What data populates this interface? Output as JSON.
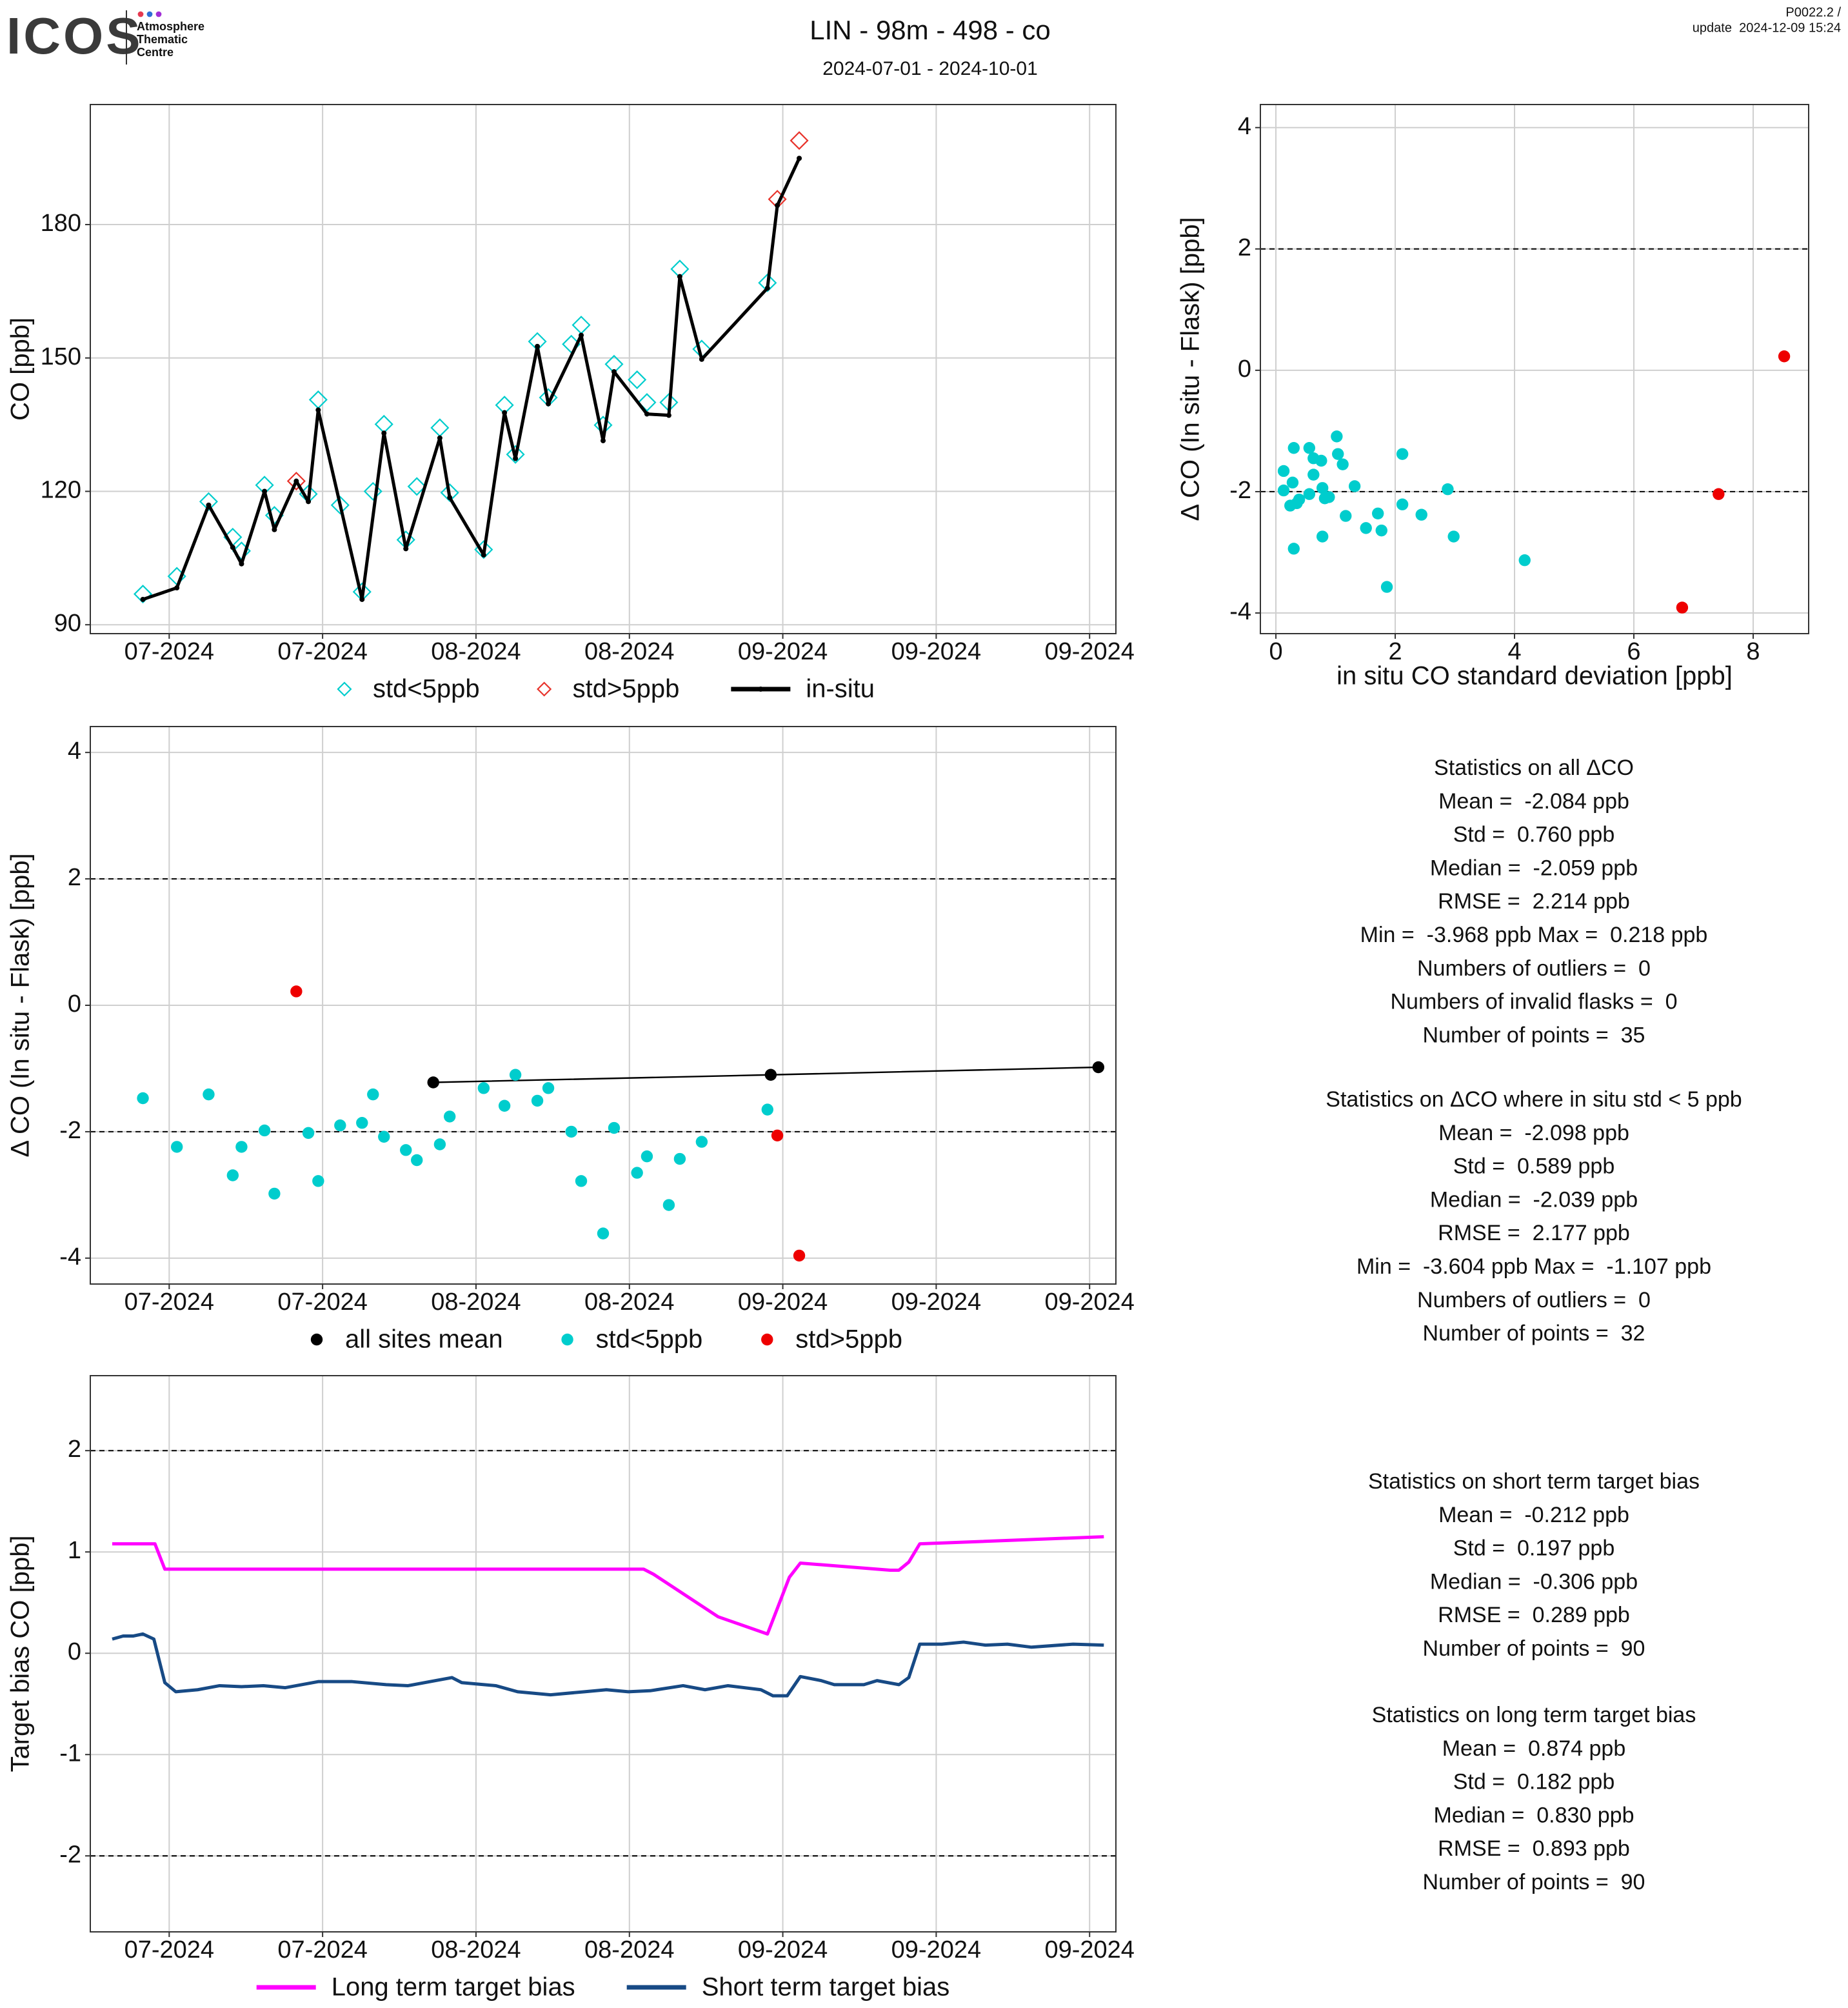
{
  "header": {
    "logo": "ICOS",
    "logo_text": [
      "Atmosphere",
      "Thematic",
      "Centre"
    ],
    "title": "LIN - 98m - 498 - co",
    "subtitle": "2024-07-01 - 2024-10-01",
    "version": "P0022.2 /",
    "update": "update  2024-12-09 15:24"
  },
  "chart_data": [
    {
      "type": "line",
      "ylabel": "CO [ppb]",
      "grid": true,
      "xlim": [
        -1.2,
        92.4
      ],
      "xticks": [
        {
          "value": 6,
          "label": "07-2024"
        },
        {
          "value": 20,
          "label": "07-2024"
        },
        {
          "value": 34,
          "label": "08-2024"
        },
        {
          "value": 48,
          "label": "08-2024"
        },
        {
          "value": 62,
          "label": "09-2024"
        },
        {
          "value": 76,
          "label": "09-2024"
        },
        {
          "value": 90,
          "label": "09-2024"
        }
      ],
      "ylim": [
        88,
        207
      ],
      "yticks": [
        90,
        120,
        150,
        180
      ],
      "series": [
        {
          "name": "std<5ppb",
          "color": "#00cdcd",
          "marker": "diamond",
          "line": false,
          "x": [
            3.6,
            6.7,
            9.6,
            11.8,
            12.6,
            14.7,
            15.6,
            18.7,
            19.6,
            21.6,
            23.6,
            24.6,
            25.6,
            27.6,
            28.6,
            30.7,
            31.6,
            34.7,
            36.6,
            37.6,
            39.6,
            40.6,
            42.7,
            43.6,
            45.6,
            46.6,
            48.7,
            49.6,
            51.6,
            52.6,
            54.6,
            60.6
          ],
          "values": [
            96.9,
            100.9,
            117.7,
            109.7,
            106.6,
            121.4,
            114.6,
            119.4,
            140.6,
            116.9,
            97.4,
            120,
            135.1,
            109.1,
            121.1,
            134.3,
            119.7,
            106.9,
            139.4,
            128.3,
            153.7,
            141.1,
            153.1,
            157.4,
            134.9,
            148.6,
            145.1,
            140,
            140,
            170,
            152,
            166.9
          ]
        },
        {
          "name": "std>5ppb",
          "color": "#e8332b",
          "marker": "diamond",
          "line": false,
          "x": [
            17.6,
            61.5,
            63.5
          ],
          "values": [
            122.3,
            185.7,
            198.9
          ]
        },
        {
          "name": "in-situ",
          "color": "#000000",
          "marker": "point",
          "line": true,
          "x": [
            3.6,
            6.7,
            9.6,
            11.8,
            12.6,
            14.7,
            15.6,
            17.6,
            18.7,
            19.6,
            23.6,
            25.6,
            27.6,
            30.7,
            31.6,
            34.7,
            36.6,
            37.6,
            39.6,
            40.6,
            43.6,
            45.6,
            46.6,
            49.6,
            51.6,
            52.6,
            54.6,
            60.6,
            61.5,
            63.5
          ],
          "values": [
            95.7,
            98.3,
            116.9,
            107.4,
            103.7,
            120,
            111.4,
            122.3,
            117.7,
            138.3,
            95.7,
            133.1,
            107.1,
            132,
            118.6,
            105.7,
            137.7,
            127.4,
            152.6,
            139.7,
            155.1,
            131.4,
            146.9,
            137.4,
            137.1,
            168.3,
            149.7,
            165.7,
            184.3,
            194.9
          ]
        }
      ]
    },
    {
      "type": "scatter",
      "xlabel": "in situ CO standard deviation [ppb]",
      "ylabel": "Δ CO (In situ - Flask) [ppb]",
      "grid": true,
      "xlim": [
        -0.26,
        8.93
      ],
      "xticks": [
        0,
        2,
        4,
        6,
        8
      ],
      "ylim": [
        -4.34,
        4.38
      ],
      "yticks": [
        -4,
        -2,
        0,
        2,
        4
      ],
      "hlines": [
        2,
        -2
      ],
      "series": [
        {
          "color": "#00cdcd",
          "marker": "circle",
          "line": false,
          "x": [
            0.13,
            0.13,
            0.24,
            0.28,
            0.3,
            0.35,
            0.3,
            0.39,
            0.56,
            0.56,
            0.63,
            0.63,
            0.76,
            0.78,
            0.82,
            0.78,
            1.02,
            1.04,
            1.12,
            1.17,
            1.32,
            1.51,
            1.71,
            1.77,
            1.86,
            2.12,
            2.12,
            2.44,
            2.88,
            2.98,
            4.17,
            0.89
          ],
          "values": [
            -1.66,
            -1.98,
            -2.23,
            -1.85,
            -1.28,
            -2.19,
            -2.94,
            -2.13,
            -1.28,
            -2.04,
            -1.45,
            -1.72,
            -1.49,
            -1.94,
            -2.11,
            -2.74,
            -1.09,
            -1.38,
            -1.55,
            -2.4,
            -1.91,
            -2.6,
            -2.36,
            -2.64,
            -3.57,
            -1.38,
            -2.21,
            -2.38,
            -1.96,
            -2.74,
            -3.13,
            -2.09
          ]
        },
        {
          "color": "#ee0000",
          "marker": "circle",
          "line": false,
          "x": [
            8.52,
            7.42,
            6.81
          ],
          "values": [
            0.23,
            -2.04,
            -3.91
          ]
        }
      ]
    },
    {
      "type": "scatter",
      "ylabel": "Δ CO (In situ - Flask) [ppb]",
      "grid": true,
      "xlim": [
        -1.2,
        92.4
      ],
      "xticks": [
        {
          "value": 6,
          "label": "07-2024"
        },
        {
          "value": 20,
          "label": "07-2024"
        },
        {
          "value": 34,
          "label": "08-2024"
        },
        {
          "value": 48,
          "label": "08-2024"
        },
        {
          "value": 62,
          "label": "09-2024"
        },
        {
          "value": 76,
          "label": "09-2024"
        },
        {
          "value": 90,
          "label": "09-2024"
        }
      ],
      "ylim": [
        -4.41,
        4.41
      ],
      "yticks": [
        -4,
        -2,
        0,
        2,
        4
      ],
      "hlines": [
        2,
        -2
      ],
      "series": [
        {
          "name": "all sites mean",
          "color": "#000000",
          "marker": "circle",
          "line": true,
          "x": [
            30.1,
            60.9,
            90.8
          ],
          "values": [
            -1.22,
            -1.1,
            -0.98
          ]
        },
        {
          "name": "std<5ppb",
          "color": "#00cdcd",
          "marker": "circle",
          "line": false,
          "x": [
            3.6,
            6.7,
            9.6,
            11.8,
            12.6,
            14.7,
            15.6,
            18.7,
            19.6,
            21.6,
            23.6,
            24.6,
            25.6,
            27.6,
            28.6,
            30.7,
            31.6,
            34.7,
            36.6,
            37.6,
            39.6,
            40.6,
            42.7,
            43.6,
            45.6,
            46.6,
            48.7,
            49.6,
            51.6,
            52.6,
            54.6,
            60.6
          ],
          "values": [
            -1.47,
            -2.24,
            -1.41,
            -2.69,
            -2.24,
            -1.98,
            -2.98,
            -2.02,
            -2.78,
            -1.9,
            -1.86,
            -1.41,
            -2.08,
            -2.29,
            -2.45,
            -2.2,
            -1.76,
            -1.31,
            -1.59,
            -1.1,
            -1.51,
            -1.31,
            -2.0,
            -2.78,
            -3.61,
            -1.94,
            -2.65,
            -2.39,
            -3.16,
            -2.43,
            -2.16,
            -1.65
          ]
        },
        {
          "name": "std>5ppb",
          "color": "#ee0000",
          "marker": "circle",
          "line": false,
          "x": [
            17.6,
            61.5,
            63.5
          ],
          "values": [
            0.22,
            -2.06,
            -3.96
          ]
        }
      ]
    },
    {
      "type": "line",
      "ylabel": "Target bias CO [ppb]",
      "grid": true,
      "xlim": [
        -1.2,
        92.4
      ],
      "xticks": [
        {
          "value": 6,
          "label": "07-2024"
        },
        {
          "value": 20,
          "label": "07-2024"
        },
        {
          "value": 34,
          "label": "08-2024"
        },
        {
          "value": 48,
          "label": "08-2024"
        },
        {
          "value": 62,
          "label": "09-2024"
        },
        {
          "value": 76,
          "label": "09-2024"
        },
        {
          "value": 90,
          "label": "09-2024"
        }
      ],
      "ylim": [
        -2.75,
        2.74
      ],
      "yticks": [
        -2,
        -1,
        0,
        1,
        2
      ],
      "hlines": [
        2,
        -2
      ],
      "series": [
        {
          "name": "Long term target bias",
          "color": "#ff00ff",
          "marker": null,
          "line": true,
          "x": [
            0.8,
            4.7,
            5.6,
            49.3,
            50.2,
            56.1,
            60.6,
            62.6,
            63.6,
            71.8,
            72.6,
            73.5,
            74.5,
            91.3
          ],
          "values": [
            1.08,
            1.08,
            0.83,
            0.83,
            0.78,
            0.36,
            0.19,
            0.75,
            0.89,
            0.82,
            0.82,
            0.9,
            1.08,
            1.15
          ]
        },
        {
          "name": "Short term target bias",
          "color": "#174a85",
          "marker": null,
          "line": true,
          "x": [
            0.8,
            1.8,
            2.7,
            3.6,
            4.6,
            5.6,
            6.6,
            8.6,
            10.6,
            12.6,
            14.6,
            16.6,
            19.6,
            22.7,
            25.8,
            27.8,
            29.8,
            31.8,
            32.7,
            35.8,
            37.8,
            40.8,
            43.9,
            45.9,
            47.9,
            49.9,
            52.9,
            54.9,
            57.0,
            60.0,
            61.1,
            62.4,
            63.6,
            65.5,
            66.7,
            69.4,
            70.6,
            72.6,
            73.5,
            74.5,
            76.5,
            78.5,
            80.5,
            82.5,
            84.7,
            88.5,
            91.3
          ],
          "values": [
            0.14,
            0.17,
            0.17,
            0.19,
            0.14,
            -0.29,
            -0.38,
            -0.36,
            -0.32,
            -0.33,
            -0.32,
            -0.34,
            -0.28,
            -0.28,
            -0.31,
            -0.32,
            -0.28,
            -0.24,
            -0.29,
            -0.32,
            -0.38,
            -0.41,
            -0.38,
            -0.36,
            -0.38,
            -0.37,
            -0.32,
            -0.36,
            -0.32,
            -0.36,
            -0.42,
            -0.42,
            -0.23,
            -0.27,
            -0.31,
            -0.31,
            -0.27,
            -0.31,
            -0.24,
            0.09,
            0.09,
            0.11,
            0.08,
            0.09,
            0.06,
            0.09,
            0.08
          ]
        }
      ]
    }
  ],
  "statistics": [
    {
      "lines": [
        "Statistics on all ΔCO",
        "Mean =  -2.084 ppb",
        "Std =  0.760 ppb",
        "Median =  -2.059 ppb",
        "RMSE =  2.214 ppb",
        "Min =  -3.968 ppb Max =  0.218 ppb",
        "Numbers of outliers =  0",
        "Numbers of invalid flasks =  0",
        "Number of points =  35"
      ]
    },
    {
      "lines": [
        "Statistics on ΔCO where in situ std < 5 ppb",
        "Mean =  -2.098 ppb",
        "Std =  0.589 ppb",
        "Median =  -2.039 ppb",
        "RMSE =  2.177 ppb",
        "Min =  -3.604 ppb Max =  -1.107 ppb",
        "Numbers of outliers =  0",
        "Number of points =  32"
      ]
    },
    {
      "lines": [
        "Statistics on short term target bias",
        "Mean =  -0.212 ppb",
        "Std =  0.197 ppb",
        "Median =  -0.306 ppb",
        "RMSE =  0.289 ppb",
        "Number of points =  90"
      ]
    },
    {
      "lines": [
        "Statistics on long term target bias",
        "Mean =  0.874 ppb",
        "Std =  0.182 ppb",
        "Median =  0.830 ppb",
        "RMSE =  0.893 ppb",
        "Number of points =  90"
      ]
    }
  ]
}
